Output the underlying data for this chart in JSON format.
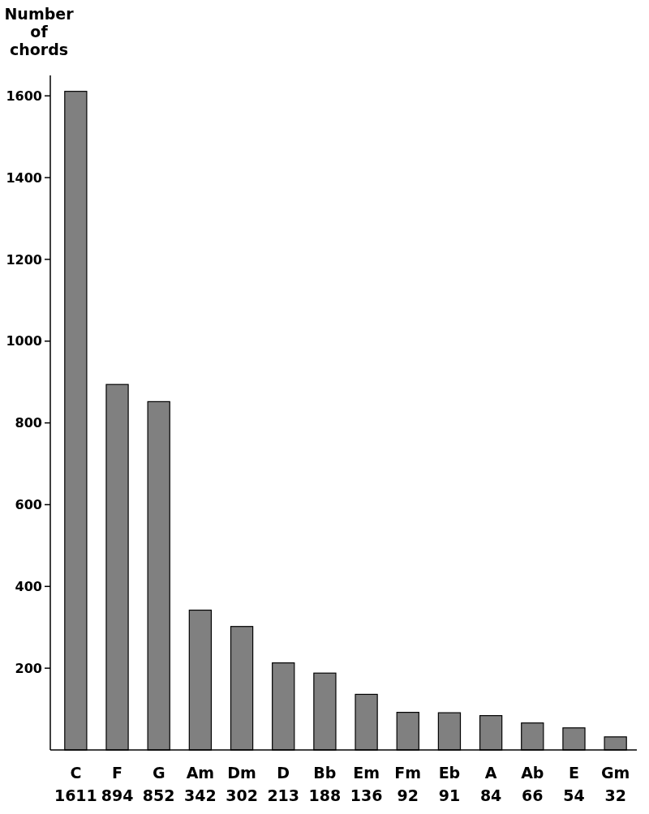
{
  "chart_data": {
    "type": "bar",
    "ylabel": "Number of chords",
    "categories": [
      "C",
      "F",
      "G",
      "Am",
      "Dm",
      "D",
      "Bb",
      "Em",
      "Fm",
      "Eb",
      "A",
      "Ab",
      "E",
      "Gm"
    ],
    "values": [
      1611,
      894,
      852,
      342,
      302,
      213,
      188,
      136,
      92,
      91,
      84,
      66,
      54,
      32
    ],
    "color": "#808080",
    "data_labels": true,
    "ylim": [
      0,
      1650
    ],
    "yticks": [
      200,
      400,
      600,
      800,
      1000,
      1200,
      1400,
      1600
    ],
    "grid": false
  }
}
